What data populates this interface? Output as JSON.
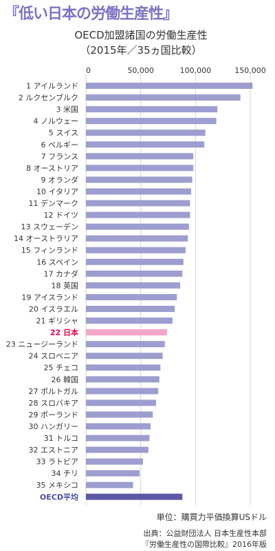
{
  "headline": "『低い日本の労働生産性』",
  "chart_data": {
    "type": "bar",
    "orientation": "horizontal",
    "title": "OECD加盟諸国の労働生産性",
    "subtitle": "（2015年／35ヵ国比較）",
    "xlim": [
      0,
      160000
    ],
    "x_ticks": [
      "0",
      "50,000",
      "100,000",
      "150,000"
    ],
    "x_tick_values": [
      0,
      50000,
      100000,
      150000
    ],
    "grid": true,
    "categories": [
      "1 アイルランド",
      "2 ルクセンブルク",
      "3 米国",
      "4 ノルウェー",
      "5 スイス",
      "6 ベルギー",
      "7 フランス",
      "8 オーストリア",
      "9 オランダ",
      "10 イタリア",
      "11 デンマーク",
      "12 ドイツ",
      "13 スウェーデン",
      "14 オーストラリア",
      "15 フィンランド",
      "16 スペイン",
      "17 カナダ",
      "18 英国",
      "19 アイスランド",
      "20 イスラエル",
      "21 ギリシャ",
      "22 日本",
      "23 ニュージーランド",
      "24 スロベニア",
      "25 チェコ",
      "26 韓国",
      "27 ポルトガル",
      "28 スロバキア",
      "29 ポーランド",
      "30 ハンガリー",
      "31 トルコ",
      "32 エストニア",
      "33 ラトビア",
      "34 チリ",
      "35 メキシコ",
      "OECD平均"
    ],
    "values": [
      152000,
      141000,
      120000,
      119000,
      109000,
      108000,
      98000,
      98000,
      97000,
      96000,
      95000,
      95000,
      94000,
      93000,
      91000,
      89000,
      88000,
      86000,
      83000,
      81000,
      79000,
      74000,
      72000,
      70000,
      68000,
      67000,
      66000,
      64000,
      61000,
      59000,
      58000,
      57000,
      52000,
      49000,
      43000,
      88000
    ],
    "highlight_index": 21,
    "average_index": 35,
    "colors": {
      "bar": "#9d9dd0",
      "highlight_bar": "#f5a6c9",
      "highlight_label": "#e6004c",
      "average_bar": "#5d58a6",
      "average_label": "#4b4aa0",
      "grid": "#d4d4d4",
      "headline": "#7c73c4"
    }
  },
  "unit_note": "単位：購買力平価換算USドル",
  "source_line1": "出典：公益財団法人 日本生産性本部",
  "source_line2": "『労働生産性の国際比較』2016年版"
}
